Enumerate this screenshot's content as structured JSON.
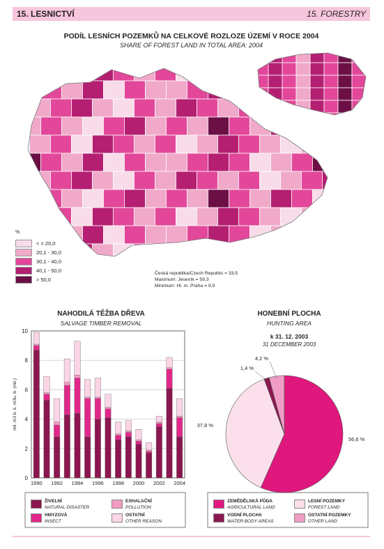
{
  "header": {
    "left": "15. LESNICTVÍ",
    "right": "15. FORESTRY"
  },
  "map": {
    "title": "PODÍL LESNÍCH POZEMKŮ NA CELKOVÉ ROZLOZE ÚZEMÍ V ROCE 2004",
    "subtitle": "SHARE OF FOREST LAND IN TOTAL AREA: 2004",
    "legend_unit": "%",
    "legend": [
      {
        "label": "< = 20,0",
        "color": "#f8dce9"
      },
      {
        "label": "20,1 - 30,0",
        "color": "#f0a9c9"
      },
      {
        "label": "30,1 - 40,0",
        "color": "#e2479a"
      },
      {
        "label": "40,1 - 50,0",
        "color": "#b41f72"
      },
      {
        "label": "> 50,0",
        "color": "#6c0f45"
      }
    ],
    "stats": [
      "Česká republika/Czech Republic = 33,5",
      "Maximum: Jeseník = 59,3",
      "Minimum: Hl. m. Praha = 9,9"
    ]
  },
  "bar_chart": {
    "title": "NAHODILÁ TĚŽBA DŘEVA",
    "subtitle": "SALVAGE TIMBER REMOVAL",
    "ylabel": "mil. m3 b. k.  m3u. b. (mil.)",
    "legend": [
      {
        "cs": "ŽIVELNÍ",
        "en": "NATURAL DISASTER",
        "color": "#8b1650"
      },
      {
        "cs": "EXHALAČNÍ",
        "en": "POLLUTION",
        "color": "#f29ac2"
      },
      {
        "cs": "HMYZOVÁ",
        "en": "INSECT",
        "color": "#e1288a"
      },
      {
        "cs": "OSTATNÍ",
        "en": "OTHER REASON",
        "color": "#fbd5e6"
      }
    ]
  },
  "pie_chart": {
    "title": "HONEBNÍ PLOCHA",
    "subtitle": "HUNTING AREA",
    "date_cs": "k 31. 12. 2003",
    "date_en": "31 DECEMBER 2003",
    "legend": [
      {
        "cs": "ZEMĚDĚLSKÁ PŮDA",
        "en": "AGRICULTURAL LAND",
        "color": "#e0187e"
      },
      {
        "cs": "LESNÍ POZEMKY",
        "en": "FOREST LAND",
        "color": "#fbe0ec"
      },
      {
        "cs": "VODNÍ PLOCHA",
        "en": "WATER BODY AREAS",
        "color": "#8b1650"
      },
      {
        "cs": "OSTATNÍ POZEMKY",
        "en": "OTHER LAND",
        "color": "#f09cc4"
      }
    ]
  },
  "footer": {
    "color": "#f6c6dc"
  },
  "chart_data": [
    {
      "type": "bar",
      "stacked": true,
      "categories": [
        "1990",
        "1991",
        "1992",
        "1993",
        "1994",
        "1995",
        "1996",
        "1997",
        "1998",
        "1999",
        "2000",
        "2001",
        "2002",
        "2003",
        "2004"
      ],
      "tick_labels": [
        "1990",
        "1992",
        "1994",
        "1996",
        "1998",
        "2000",
        "2002",
        "2004"
      ],
      "ylim": [
        0,
        10
      ],
      "yticks": [
        0,
        2,
        4,
        6,
        8,
        10
      ],
      "grid": true,
      "series": [
        {
          "name": "ŽIVELNÍ",
          "values": [
            8.7,
            5.3,
            2.8,
            4.3,
            4.4,
            2.8,
            4.0,
            4.1,
            2.6,
            2.8,
            2.3,
            1.7,
            3.5,
            6.1,
            2.8
          ]
        },
        {
          "name": "HMYZOVÁ",
          "values": [
            0.3,
            0.4,
            0.8,
            2.0,
            2.4,
            2.6,
            1.4,
            0.6,
            0.3,
            0.3,
            0.2,
            0.1,
            0.2,
            1.3,
            1.3
          ]
        },
        {
          "name": "EXHALAČNÍ",
          "values": [
            0.1,
            0.1,
            0.2,
            0.2,
            0.2,
            0.1,
            0.1,
            0.1,
            0.1,
            0.1,
            0.1,
            0.1,
            0.1,
            0.1,
            0.1
          ]
        },
        {
          "name": "OSTATNÍ",
          "values": [
            0.8,
            1.1,
            1.6,
            1.6,
            2.3,
            1.2,
            1.3,
            0.9,
            0.8,
            0.7,
            0.7,
            0.5,
            0.4,
            0.7,
            1.2
          ]
        }
      ]
    },
    {
      "type": "pie",
      "slices": [
        {
          "name": "ZEMĚDĚLSKÁ PŮDA",
          "value": 56.6,
          "label": "56,6 %"
        },
        {
          "name": "LESNÍ POZEMKY",
          "value": 37.8,
          "label": "37,8 %"
        },
        {
          "name": "VODNÍ PLOCHA",
          "value": 1.4,
          "label": "1,4 %"
        },
        {
          "name": "OSTATNÍ POZEMKY",
          "value": 4.2,
          "label": "4,2 %"
        }
      ]
    }
  ]
}
